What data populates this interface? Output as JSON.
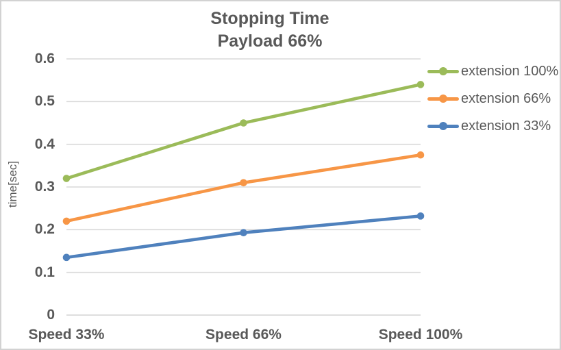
{
  "frame": {
    "background": "#ffffff",
    "border_color": "#d2d2d2"
  },
  "chart_data": {
    "type": "line",
    "title": "Stopping Time",
    "subtitle": "Payload 66%",
    "ylabel": "time[sec]",
    "xlabel": "",
    "categories": [
      "Speed 33%",
      "Speed 66%",
      "Speed 100%"
    ],
    "ylim": [
      0,
      0.6
    ],
    "yticks": [
      {
        "label": "0",
        "value": 0
      },
      {
        "label": "0.1",
        "value": 0.1
      },
      {
        "label": "0.2",
        "value": 0.2
      },
      {
        "label": "0.3",
        "value": 0.3
      },
      {
        "label": "0.4",
        "value": 0.4
      },
      {
        "label": "0.5",
        "value": 0.5
      },
      {
        "label": "0.6",
        "value": 0.6
      }
    ],
    "grid": "horizontal",
    "legend_position": "right",
    "text_color": "#595959",
    "gridline_color": "#d9d9d9",
    "axis_line_color": "#d3d3d3",
    "series": [
      {
        "name": "extension 100%",
        "color": "#9bbb59",
        "values": [
          0.32,
          0.45,
          0.54
        ]
      },
      {
        "name": "extension 66%",
        "color": "#f79646",
        "values": [
          0.22,
          0.31,
          0.375
        ]
      },
      {
        "name": "extension 33%",
        "color": "#4f81bd",
        "values": [
          0.135,
          0.193,
          0.232
        ]
      }
    ]
  }
}
